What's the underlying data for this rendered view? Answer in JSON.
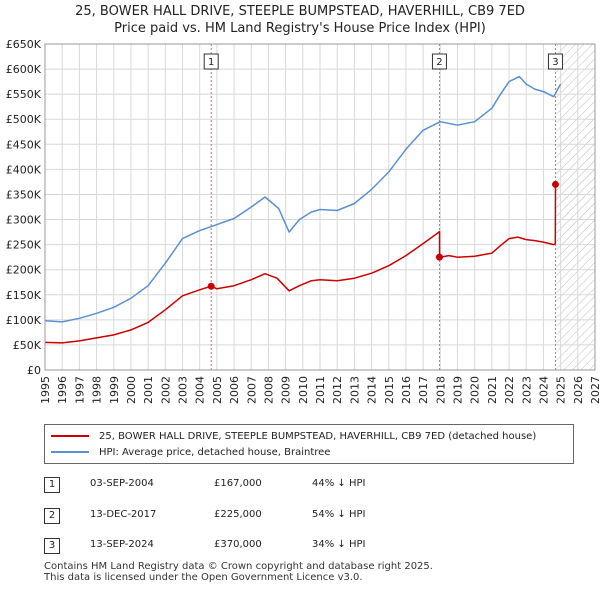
{
  "header": {
    "title_line1": "25, BOWER HALL DRIVE, STEEPLE BUMPSTEAD, HAVERHILL, CB9 7ED",
    "title_line2": "Price paid vs. HM Land Registry's House Price Index (HPI)"
  },
  "chart_data": {
    "type": "line",
    "title": "25, BOWER HALL DRIVE, STEEPLE BUMPSTEAD, HAVERHILL, CB9 7ED — Price paid vs. HM Land Registry's House Price Index (HPI)",
    "xlim": [
      1995,
      2027
    ],
    "ylim": [
      0,
      650000
    ],
    "x_ticks": [
      1995,
      1996,
      1997,
      1998,
      1999,
      2000,
      2001,
      2002,
      2003,
      2004,
      2005,
      2006,
      2007,
      2008,
      2009,
      2010,
      2011,
      2012,
      2013,
      2014,
      2015,
      2016,
      2017,
      2018,
      2019,
      2020,
      2021,
      2022,
      2023,
      2024,
      2025,
      2026,
      2027
    ],
    "y_ticks": [
      {
        "value": 0,
        "label": "£0"
      },
      {
        "value": 50000,
        "label": "£50K"
      },
      {
        "value": 100000,
        "label": "£100K"
      },
      {
        "value": 150000,
        "label": "£150K"
      },
      {
        "value": 200000,
        "label": "£200K"
      },
      {
        "value": 250000,
        "label": "£250K"
      },
      {
        "value": 300000,
        "label": "£300K"
      },
      {
        "value": 350000,
        "label": "£350K"
      },
      {
        "value": 400000,
        "label": "£400K"
      },
      {
        "value": 450000,
        "label": "£450K"
      },
      {
        "value": 500000,
        "label": "£500K"
      },
      {
        "value": 550000,
        "label": "£550K"
      },
      {
        "value": 600000,
        "label": "£600K"
      },
      {
        "value": 650000,
        "label": "£650K"
      }
    ],
    "grid": true,
    "forecast_start": 2024.75,
    "series": [
      {
        "name": "25, BOWER HALL DRIVE, STEEPLE BUMPSTEAD, HAVERHILL, CB9 7ED (detached house)",
        "color": "#cc0000",
        "points": [
          [
            1995,
            55000
          ],
          [
            1996,
            54000
          ],
          [
            1997,
            58000
          ],
          [
            1998,
            64000
          ],
          [
            1999,
            70000
          ],
          [
            2000,
            80000
          ],
          [
            2001,
            95000
          ],
          [
            2002,
            120000
          ],
          [
            2003,
            148000
          ],
          [
            2004,
            160000
          ],
          [
            2004.67,
            167000
          ],
          [
            2005,
            162000
          ],
          [
            2006,
            168000
          ],
          [
            2007,
            180000
          ],
          [
            2007.8,
            192000
          ],
          [
            2008.5,
            183000
          ],
          [
            2009.2,
            158000
          ],
          [
            2009.8,
            168000
          ],
          [
            2010.5,
            178000
          ],
          [
            2011,
            180000
          ],
          [
            2012,
            178000
          ],
          [
            2013,
            183000
          ],
          [
            2014,
            193000
          ],
          [
            2015,
            208000
          ],
          [
            2016,
            228000
          ],
          [
            2017,
            252000
          ],
          [
            2017.8,
            272000
          ],
          [
            2017.95,
            276000
          ],
          [
            2017.96,
            225000
          ],
          [
            2018.5,
            228000
          ],
          [
            2019,
            225000
          ],
          [
            2020,
            227000
          ],
          [
            2021,
            233000
          ],
          [
            2021.5,
            248000
          ],
          [
            2022,
            262000
          ],
          [
            2022.5,
            265000
          ],
          [
            2023,
            260000
          ],
          [
            2023.5,
            258000
          ],
          [
            2024,
            255000
          ],
          [
            2024.6,
            250000
          ],
          [
            2024.69,
            252000
          ],
          [
            2024.7,
            370000
          ]
        ]
      },
      {
        "name": "HPI: Average price, detached house, Braintree",
        "color": "#5b8fd4",
        "points": [
          [
            1995,
            98000
          ],
          [
            1996,
            96000
          ],
          [
            1997,
            103000
          ],
          [
            1998,
            113000
          ],
          [
            1999,
            125000
          ],
          [
            2000,
            143000
          ],
          [
            2001,
            168000
          ],
          [
            2002,
            213000
          ],
          [
            2003,
            262000
          ],
          [
            2004,
            278000
          ],
          [
            2005,
            290000
          ],
          [
            2006,
            302000
          ],
          [
            2007,
            325000
          ],
          [
            2007.8,
            345000
          ],
          [
            2008.6,
            322000
          ],
          [
            2009.2,
            275000
          ],
          [
            2009.8,
            300000
          ],
          [
            2010.5,
            315000
          ],
          [
            2011,
            320000
          ],
          [
            2012,
            318000
          ],
          [
            2013,
            332000
          ],
          [
            2014,
            360000
          ],
          [
            2015,
            395000
          ],
          [
            2016,
            440000
          ],
          [
            2017,
            478000
          ],
          [
            2018,
            495000
          ],
          [
            2019,
            488000
          ],
          [
            2020,
            495000
          ],
          [
            2021,
            522000
          ],
          [
            2021.5,
            550000
          ],
          [
            2022,
            575000
          ],
          [
            2022.6,
            585000
          ],
          [
            2023,
            570000
          ],
          [
            2023.5,
            560000
          ],
          [
            2024,
            555000
          ],
          [
            2024.6,
            545000
          ],
          [
            2025,
            570000
          ]
        ]
      }
    ],
    "markers": [
      {
        "label": "1",
        "x": 2004.67,
        "y": 167000
      },
      {
        "label": "2",
        "x": 2017.95,
        "y": 225000
      },
      {
        "label": "3",
        "x": 2024.7,
        "y": 370000
      }
    ]
  },
  "legend": {
    "items": [
      {
        "label": "25, BOWER HALL DRIVE, STEEPLE BUMPSTEAD, HAVERHILL, CB9 7ED (detached house)",
        "color": "#cc0000"
      },
      {
        "label": "HPI: Average price, detached house, Braintree",
        "color": "#5b8fd4"
      }
    ]
  },
  "transactions": [
    {
      "num": "1",
      "date": "03-SEP-2004",
      "price": "£167,000",
      "hpi": "44% ↓ HPI"
    },
    {
      "num": "2",
      "date": "13-DEC-2017",
      "price": "£225,000",
      "hpi": "54% ↓ HPI"
    },
    {
      "num": "3",
      "date": "13-SEP-2024",
      "price": "£370,000",
      "hpi": "34% ↓ HPI"
    }
  ],
  "footer": {
    "line1": "Contains HM Land Registry data © Crown copyright and database right 2025.",
    "line2": "This data is licensed under the Open Government Licence v3.0."
  }
}
